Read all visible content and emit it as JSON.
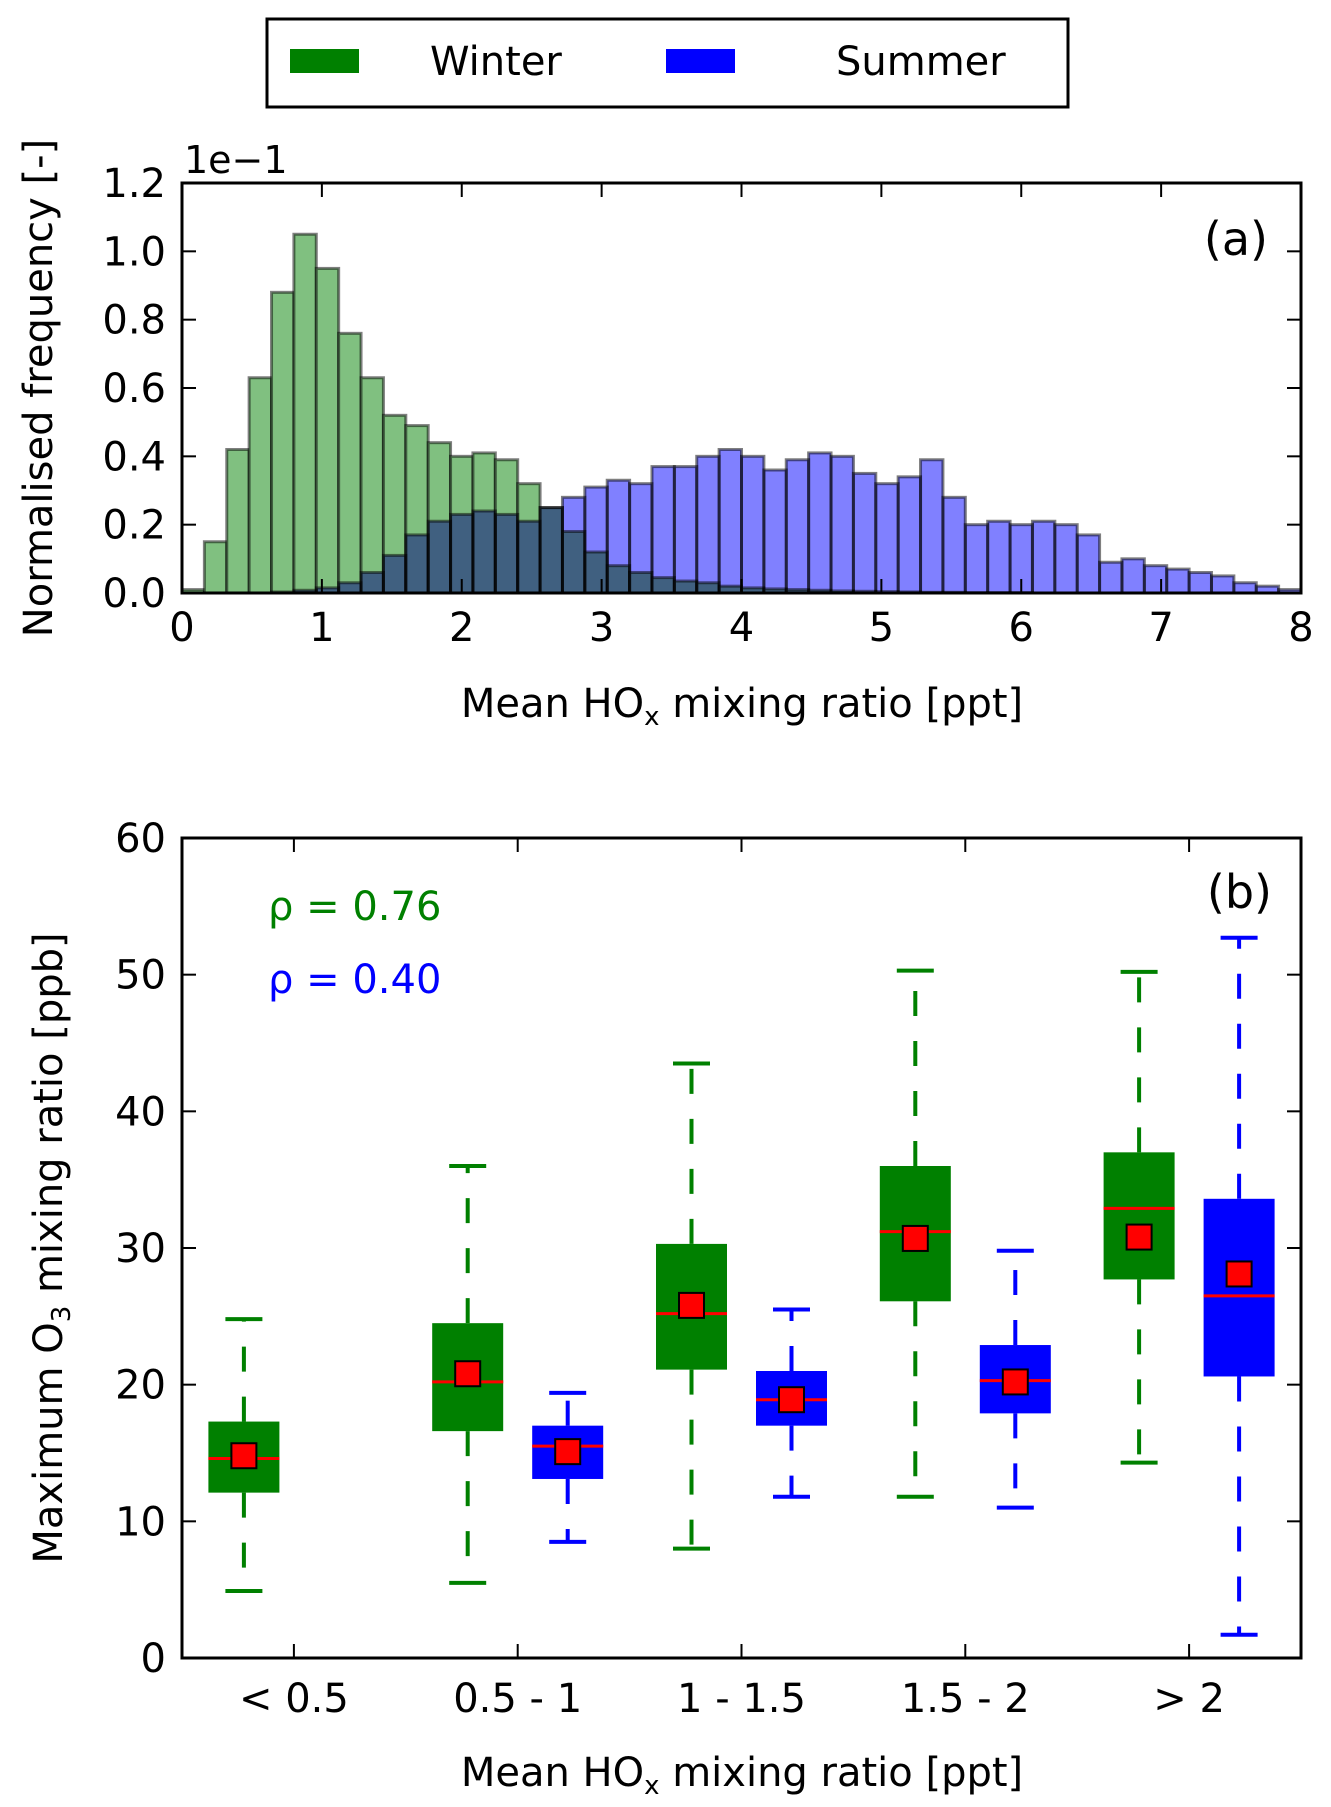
{
  "legend": {
    "items": [
      {
        "label": "Winter",
        "color": "#008000"
      },
      {
        "label": "Summer",
        "color": "#0000ff"
      }
    ]
  },
  "chart_data": [
    {
      "type": "bar",
      "subtype": "histogram-overlay",
      "panel_label": "(a)",
      "title": "",
      "xlabel": "Mean HO",
      "xlabel_sub": "x",
      "xlabel_suffix": " mixing ratio [ppt]",
      "ylabel": "Normalised frequency [-]",
      "y_offset_text": "1e−1",
      "xlim": [
        0,
        8
      ],
      "ylim": [
        0,
        1.2
      ],
      "y_scale_note": "values shown in units of 1e-1",
      "xticks": [
        "0",
        "1",
        "2",
        "3",
        "4",
        "5",
        "6",
        "7",
        "8"
      ],
      "yticks": [
        "0.0",
        "0.2",
        "0.4",
        "0.6",
        "0.8",
        "1.0",
        "1.2"
      ],
      "bin_width": 0.16,
      "bin_start": 0.0,
      "series": [
        {
          "name": "Winter",
          "fill": "#80c080",
          "values": [
            0.01,
            0.15,
            0.42,
            0.63,
            0.88,
            1.05,
            0.95,
            0.76,
            0.63,
            0.52,
            0.49,
            0.44,
            0.4,
            0.41,
            0.39,
            0.32,
            0.25,
            0.18,
            0.12,
            0.08,
            0.06,
            0.045,
            0.035,
            0.03,
            0.02,
            0.015,
            0.012,
            0.01,
            0.008,
            0.006,
            0.005,
            0.004,
            0.003,
            0.002,
            0.002,
            0.001,
            0.001,
            0.001,
            0.0,
            0.0,
            0.0,
            0.0,
            0.0,
            0.0,
            0.0,
            0.0,
            0.0,
            0.0,
            0.0,
            0.0
          ]
        },
        {
          "name": "Summer",
          "fill": "#8080ff",
          "values": [
            0.0,
            0.0,
            0.0,
            0.0,
            0.003,
            0.008,
            0.015,
            0.03,
            0.06,
            0.11,
            0.17,
            0.21,
            0.23,
            0.24,
            0.23,
            0.21,
            0.25,
            0.28,
            0.31,
            0.33,
            0.32,
            0.37,
            0.37,
            0.4,
            0.42,
            0.4,
            0.36,
            0.39,
            0.41,
            0.4,
            0.35,
            0.32,
            0.34,
            0.39,
            0.28,
            0.2,
            0.21,
            0.2,
            0.21,
            0.2,
            0.17,
            0.09,
            0.1,
            0.08,
            0.07,
            0.06,
            0.05,
            0.03,
            0.02,
            0.01
          ]
        }
      ]
    },
    {
      "type": "boxplot",
      "panel_label": "(b)",
      "title": "",
      "xlabel": "Mean HO",
      "xlabel_sub": "x",
      "xlabel_suffix": " mixing ratio [ppt]",
      "ylabel_pre": "Maximum O",
      "ylabel_sub": "3",
      "ylabel_post": " mixing ratio [ppb]",
      "ylim": [
        0,
        60
      ],
      "yticks": [
        "0",
        "10",
        "20",
        "30",
        "40",
        "50",
        "60"
      ],
      "categories": [
        "< 0.5",
        "0.5 - 1",
        "1 - 1.5",
        "1.5 - 2",
        "> 2"
      ],
      "annotations": [
        {
          "text": "ρ = 0.76",
          "color": "#008000"
        },
        {
          "text": "ρ = 0.40",
          "color": "#0000ff"
        }
      ],
      "series": [
        {
          "name": "Winter",
          "color": "#008000",
          "boxes": [
            {
              "whislo": 4.9,
              "q1": 12.1,
              "median": 14.6,
              "q3": 17.3,
              "whishi": 24.8,
              "mean": 14.8
            },
            {
              "whislo": 5.5,
              "q1": 16.6,
              "median": 20.2,
              "q3": 24.5,
              "whishi": 36.0,
              "mean": 20.8
            },
            {
              "whislo": 8.0,
              "q1": 21.1,
              "median": 25.2,
              "q3": 30.3,
              "whishi": 43.5,
              "mean": 25.8
            },
            {
              "whislo": 11.8,
              "q1": 26.1,
              "median": 31.2,
              "q3": 36.0,
              "whishi": 50.3,
              "mean": 30.7
            },
            {
              "whislo": 14.3,
              "q1": 27.7,
              "median": 32.9,
              "q3": 37.0,
              "whishi": 50.2,
              "mean": 30.8
            }
          ]
        },
        {
          "name": "Summer",
          "color": "#0000ff",
          "boxes": [
            null,
            {
              "whislo": 8.5,
              "q1": 13.1,
              "median": 15.5,
              "q3": 17.0,
              "whishi": 19.4,
              "mean": 15.1
            },
            {
              "whislo": 11.8,
              "q1": 17.0,
              "median": 18.9,
              "q3": 21.0,
              "whishi": 25.5,
              "mean": 18.9
            },
            {
              "whislo": 11.0,
              "q1": 17.9,
              "median": 20.3,
              "q3": 22.9,
              "whishi": 29.8,
              "mean": 20.2
            },
            {
              "whislo": 1.7,
              "q1": 20.6,
              "median": 26.5,
              "q3": 33.6,
              "whishi": 52.7,
              "mean": 28.1
            }
          ]
        }
      ],
      "median_color": "#ff0000",
      "mean_marker_color": "#ff0000"
    }
  ]
}
